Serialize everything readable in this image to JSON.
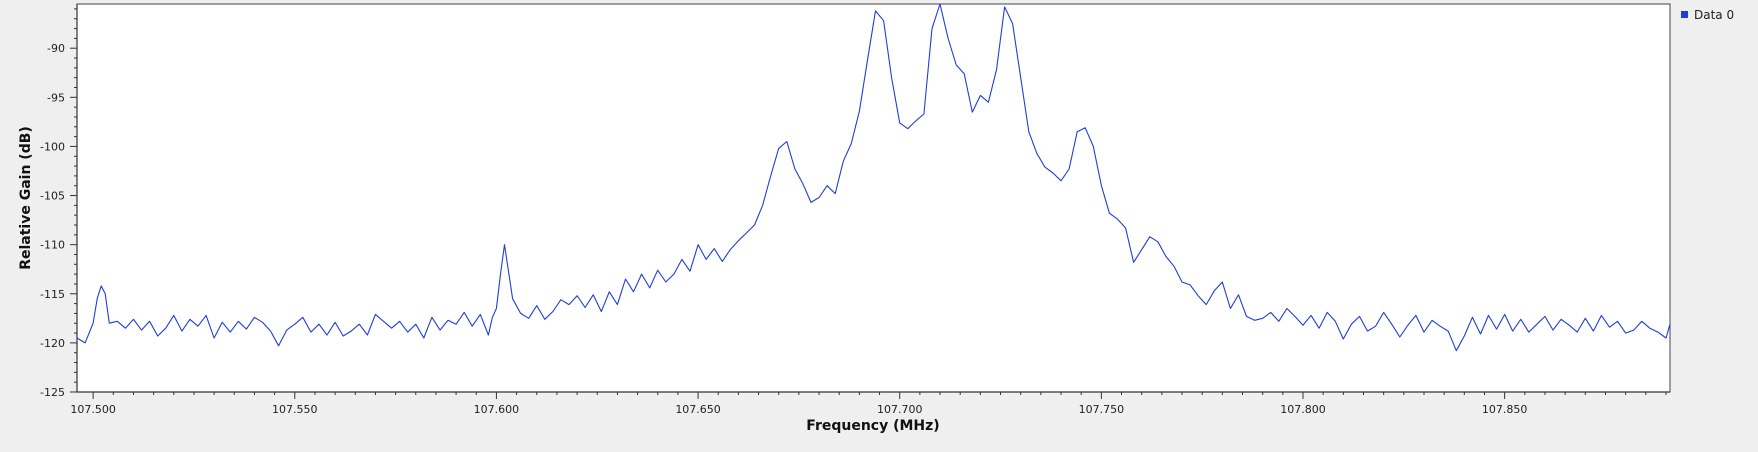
{
  "chart_data": {
    "type": "line",
    "title": "",
    "xlabel": "Frequency (MHz)",
    "ylabel": "Relative Gain (dB)",
    "xlim": [
      107.496,
      107.891
    ],
    "ylim": [
      -125,
      -85.5
    ],
    "x_ticks": [
      "107.500",
      "107.550",
      "107.600",
      "107.650",
      "107.700",
      "107.750",
      "107.800",
      "107.850"
    ],
    "y_ticks": [
      "-90",
      "-95",
      "-100",
      "-105",
      "-110",
      "-115",
      "-120",
      "-125"
    ],
    "grid": false,
    "legend_position": "top-right",
    "series": [
      {
        "name": "Data 0",
        "color": "#1f3fd6",
        "x": [
          107.496,
          107.498,
          107.5,
          107.501,
          107.502,
          107.503,
          107.504,
          107.506,
          107.508,
          107.51,
          107.512,
          107.514,
          107.516,
          107.518,
          107.52,
          107.522,
          107.524,
          107.526,
          107.528,
          107.53,
          107.532,
          107.534,
          107.536,
          107.538,
          107.54,
          107.542,
          107.544,
          107.546,
          107.548,
          107.55,
          107.552,
          107.554,
          107.556,
          107.558,
          107.56,
          107.562,
          107.564,
          107.566,
          107.568,
          107.57,
          107.572,
          107.574,
          107.576,
          107.578,
          107.58,
          107.582,
          107.584,
          107.586,
          107.588,
          107.59,
          107.592,
          107.594,
          107.596,
          107.598,
          107.599,
          107.6,
          107.601,
          107.602,
          107.604,
          107.606,
          107.608,
          107.61,
          107.612,
          107.614,
          107.616,
          107.618,
          107.62,
          107.622,
          107.624,
          107.626,
          107.628,
          107.63,
          107.632,
          107.634,
          107.636,
          107.638,
          107.64,
          107.642,
          107.644,
          107.646,
          107.648,
          107.65,
          107.652,
          107.654,
          107.656,
          107.658,
          107.66,
          107.662,
          107.664,
          107.666,
          107.668,
          107.67,
          107.672,
          107.674,
          107.676,
          107.678,
          107.68,
          107.682,
          107.684,
          107.686,
          107.688,
          107.69,
          107.692,
          107.694,
          107.696,
          107.698,
          107.7,
          107.702,
          107.704,
          107.706,
          107.708,
          107.71,
          107.712,
          107.714,
          107.716,
          107.718,
          107.72,
          107.722,
          107.724,
          107.726,
          107.728,
          107.73,
          107.732,
          107.734,
          107.736,
          107.738,
          107.74,
          107.742,
          107.744,
          107.746,
          107.748,
          107.75,
          107.752,
          107.754,
          107.756,
          107.758,
          107.76,
          107.762,
          107.764,
          107.766,
          107.768,
          107.77,
          107.772,
          107.774,
          107.776,
          107.778,
          107.78,
          107.782,
          107.784,
          107.786,
          107.788,
          107.79,
          107.792,
          107.794,
          107.796,
          107.798,
          107.8,
          107.802,
          107.804,
          107.806,
          107.808,
          107.81,
          107.812,
          107.814,
          107.816,
          107.818,
          107.82,
          107.822,
          107.824,
          107.826,
          107.828,
          107.83,
          107.832,
          107.834,
          107.836,
          107.838,
          107.84,
          107.842,
          107.844,
          107.846,
          107.848,
          107.85,
          107.852,
          107.854,
          107.856,
          107.858,
          107.86,
          107.862,
          107.864,
          107.866,
          107.868,
          107.87,
          107.872,
          107.874,
          107.876,
          107.878,
          107.88,
          107.882,
          107.884,
          107.886,
          107.888,
          107.89,
          107.891
        ],
        "values": [
          -119.5,
          -120,
          -118,
          -115.5,
          -114.2,
          -115,
          -118,
          -117.8,
          -118.5,
          -117.6,
          -118.7,
          -117.8,
          -119.3,
          -118.5,
          -117.2,
          -118.8,
          -117.6,
          -118.3,
          -117.2,
          -119.5,
          -117.9,
          -118.9,
          -117.8,
          -118.6,
          -117.4,
          -117.9,
          -118.8,
          -120.3,
          -118.7,
          -118.1,
          -117.4,
          -118.9,
          -118.1,
          -119.2,
          -117.9,
          -119.3,
          -118.8,
          -118.1,
          -119.2,
          -117.1,
          -117.8,
          -118.5,
          -117.8,
          -118.9,
          -118.1,
          -119.5,
          -117.4,
          -118.7,
          -117.7,
          -118.1,
          -116.9,
          -118.3,
          -117.1,
          -119.2,
          -117.4,
          -116.5,
          -113,
          -110,
          -115.5,
          -117,
          -117.5,
          -116.2,
          -117.6,
          -116.8,
          -115.6,
          -116.1,
          -115.2,
          -116.4,
          -115.1,
          -116.8,
          -114.8,
          -116.1,
          -113.5,
          -114.8,
          -113,
          -114.4,
          -112.6,
          -113.8,
          -113,
          -111.5,
          -112.7,
          -110,
          -111.5,
          -110.4,
          -111.7,
          -110.5,
          -109.6,
          -108.8,
          -108,
          -106,
          -103,
          -100.2,
          -99.5,
          -102.3,
          -103.8,
          -105.7,
          -105.2,
          -104,
          -104.8,
          -101.5,
          -99.7,
          -96.4,
          -91.2,
          -86.2,
          -87.2,
          -93,
          -97.6,
          -98.2,
          -97.4,
          -96.7,
          -88,
          -85.5,
          -89,
          -91.7,
          -92.6,
          -96.5,
          -94.8,
          -95.5,
          -92.2,
          -85.8,
          -87.5,
          -93,
          -98.5,
          -100.7,
          -102.1,
          -102.7,
          -103.5,
          -102.3,
          -98.5,
          -98.1,
          -100,
          -104,
          -106.8,
          -107.4,
          -108.3,
          -111.8,
          -110.5,
          -109.2,
          -109.7,
          -111.2,
          -112.2,
          -113.8,
          -114.1,
          -115.2,
          -116.1,
          -114.7,
          -113.8,
          -116.5,
          -115.1,
          -117.3,
          -117.7,
          -117.5,
          -116.9,
          -117.8,
          -116.5,
          -117.3,
          -118.2,
          -117.2,
          -118.5,
          -116.9,
          -117.8,
          -119.6,
          -118.1,
          -117.3,
          -118.8,
          -118.3,
          -116.9,
          -118.1,
          -119.4,
          -118.2,
          -117.2,
          -118.9,
          -117.7,
          -118.3,
          -118.8,
          -120.8,
          -119.3,
          -117.4,
          -119.1,
          -117.2,
          -118.6,
          -117.1,
          -118.8,
          -117.6,
          -118.9,
          -118.1,
          -117.3,
          -118.7,
          -117.6,
          -118.2,
          -118.9,
          -117.5,
          -118.8,
          -117.2,
          -118.4,
          -117.8,
          -119,
          -118.7,
          -117.8,
          -118.5,
          -118.9,
          -119.5,
          -118.1
        ]
      }
    ]
  }
}
